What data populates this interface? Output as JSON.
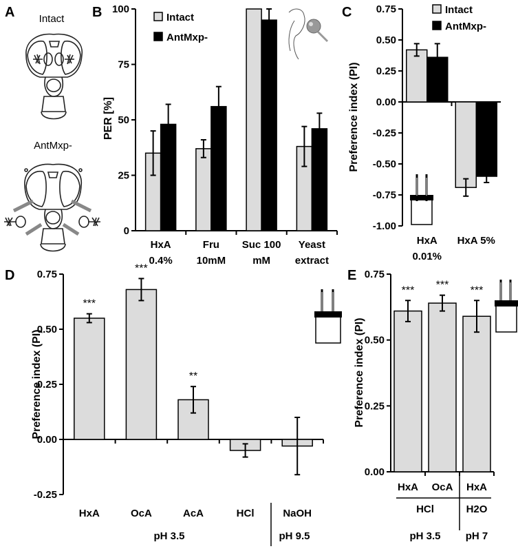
{
  "colors": {
    "control": "#dcdcdc",
    "treated": "#000000",
    "axis": "#000000"
  },
  "icons": [
    "drosophila-head-intact-icon",
    "drosophila-head-antmxp-icon",
    "fly-proboscis-icon",
    "two-choice-vial-icon"
  ],
  "panelA": {
    "letter": "A",
    "intact_label": "Intact",
    "antmxp_label": "AntMxp-"
  },
  "chart_data": [
    {
      "panel": "B",
      "type": "bar",
      "ylabel": "PER [%]",
      "ylim": [
        0,
        100
      ],
      "yticks": [
        "0",
        "25",
        "50",
        "75",
        "100"
      ],
      "categories": [
        [
          "HxA",
          "0.4%"
        ],
        [
          "Fru",
          "10mM"
        ],
        [
          "Suc 100",
          "mM"
        ],
        [
          "Yeast",
          "extract"
        ]
      ],
      "legend": [
        "Intact",
        "AntMxp-"
      ],
      "series": [
        {
          "name": "Intact",
          "values": [
            35,
            37,
            100,
            38
          ],
          "errors": [
            10,
            4,
            0,
            9
          ]
        },
        {
          "name": "AntMxp-",
          "values": [
            48,
            56,
            95,
            46
          ],
          "errors": [
            9,
            9,
            5,
            7
          ]
        }
      ]
    },
    {
      "panel": "C",
      "type": "bar",
      "ylabel": "Preference index (PI)",
      "ylim": [
        -1.0,
        0.75
      ],
      "yticks": [
        "0.75",
        "0.50",
        "0.25",
        "0.00",
        "-0.25",
        "-0.50",
        "-0.75",
        "-1.00"
      ],
      "categories": [
        [
          "HxA",
          "0.01%"
        ],
        [
          "HxA 5%",
          ""
        ]
      ],
      "legend": [
        "Intact",
        "AntMxp-"
      ],
      "series": [
        {
          "name": "Intact",
          "values": [
            0.42,
            -0.69
          ],
          "errors": [
            0.05,
            0.07
          ]
        },
        {
          "name": "AntMxp-",
          "values": [
            0.36,
            -0.6
          ],
          "errors": [
            0.11,
            0.05
          ]
        }
      ]
    },
    {
      "panel": "D",
      "type": "bar",
      "ylabel": "Preference index (PI)",
      "ylim": [
        -0.25,
        0.75
      ],
      "yticks": [
        "0.75",
        "0.50",
        "0.25",
        "0.00",
        "-0.25"
      ],
      "categories": [
        "HxA",
        "OcA",
        "AcA",
        "HCl",
        "NaOH"
      ],
      "values": [
        0.55,
        0.68,
        0.18,
        -0.05,
        -0.03
      ],
      "errors": [
        0.02,
        0.05,
        0.06,
        0.03,
        0.13
      ],
      "significance": [
        "***",
        "***",
        "**",
        "",
        ""
      ],
      "group_labels": [
        "pH 3.5",
        "pH 9.5"
      ]
    },
    {
      "panel": "E",
      "type": "bar",
      "ylabel": "Preference index (PI)",
      "ylim": [
        0.0,
        0.75
      ],
      "yticks": [
        "0.75",
        "0.50",
        "0.25",
        "0.00"
      ],
      "categories": [
        "HxA",
        "OcA",
        "HxA"
      ],
      "values": [
        0.61,
        0.64,
        0.59
      ],
      "errors": [
        0.04,
        0.03,
        0.06
      ],
      "significance": [
        "***",
        "***",
        "***"
      ],
      "sub_labels": [
        "HCl",
        "H2O"
      ],
      "group_labels": [
        "pH 3.5",
        "pH 7"
      ]
    }
  ]
}
